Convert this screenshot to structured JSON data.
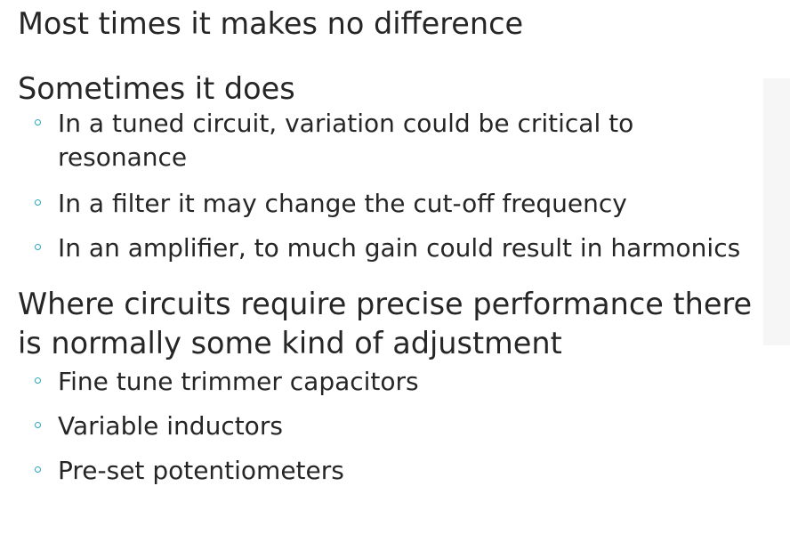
{
  "slide": {
    "paragraph_1": "Most times it makes no difference",
    "paragraph_2": "Sometimes it does",
    "sublist_2": [
      "In a tuned circuit, variation could be critical to resonance",
      "In a filter it may change the cut-off frequency",
      "In an amplifier, to much gain could result in harmonics"
    ],
    "paragraph_3": "Where circuits require precise performance there is normally some kind of adjustment",
    "sublist_3": [
      "Fine tune trimmer capacitors",
      "Variable inductors",
      "Pre-set potentiometers"
    ]
  },
  "colors": {
    "text": "#262626",
    "bullet": "#2aa7bf",
    "side_band": "#f6f6f6"
  }
}
